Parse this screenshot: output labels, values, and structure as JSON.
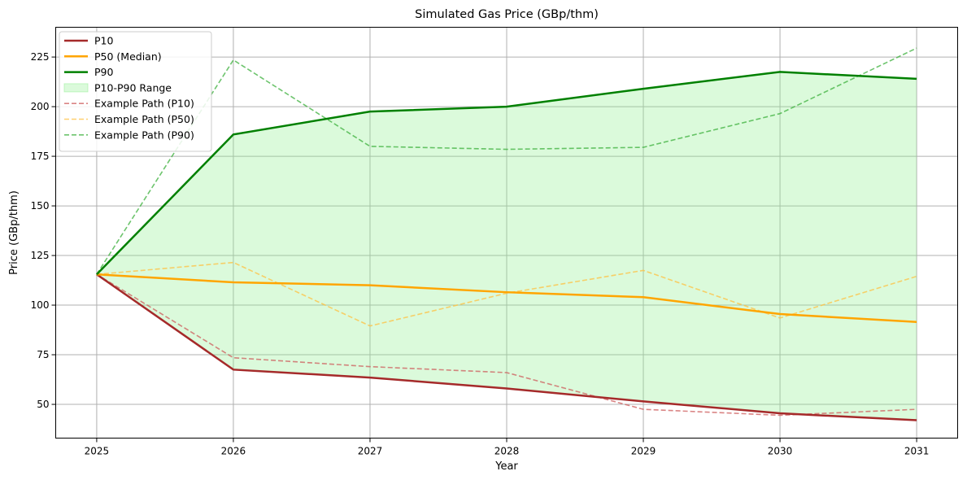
{
  "chart_data": {
    "type": "line",
    "title": "Simulated Gas Price (GBp/thm)",
    "xlabel": "Year",
    "ylabel": "Price (GBp/thm)",
    "x": [
      2025,
      2026,
      2027,
      2028,
      2029,
      2030,
      2031
    ],
    "x_ticks": [
      "2025",
      "2026",
      "2027",
      "2028",
      "2029",
      "2030",
      "2031"
    ],
    "y_ticks": [
      "50",
      "75",
      "100",
      "125",
      "150",
      "175",
      "200",
      "225"
    ],
    "xlim": [
      2024.7,
      2031.3
    ],
    "ylim": [
      33,
      240
    ],
    "grid": true,
    "legend_position": "upper-left",
    "band": {
      "name": "P10-P90 Range",
      "color": "#90ee90",
      "lower": [
        115.5,
        67.5,
        63.5,
        58.0,
        51.5,
        45.5,
        42.0
      ],
      "upper": [
        115.5,
        186.0,
        197.5,
        200.0,
        209.0,
        217.5,
        214.0
      ]
    },
    "series": [
      {
        "name": "P10",
        "style": "solid",
        "color": "#a52a2a",
        "values": [
          115.5,
          67.5,
          63.5,
          58.0,
          51.5,
          45.5,
          42.0
        ]
      },
      {
        "name": "P50 (Median)",
        "style": "solid",
        "color": "#ffa500",
        "values": [
          115.5,
          111.5,
          110.0,
          106.5,
          104.0,
          95.5,
          91.5
        ]
      },
      {
        "name": "P90",
        "style": "solid",
        "color": "#008000",
        "values": [
          115.5,
          186.0,
          197.5,
          200.0,
          209.0,
          217.5,
          214.0
        ]
      },
      {
        "name": "Example Path (P10)",
        "style": "dashed",
        "color": "#cd5c5c",
        "values": [
          115.5,
          73.5,
          69.0,
          66.0,
          47.5,
          44.5,
          47.5
        ]
      },
      {
        "name": "Example Path (P50)",
        "style": "dashed",
        "color": "#ffc040",
        "values": [
          115.5,
          121.5,
          89.5,
          106.0,
          117.5,
          93.5,
          114.5
        ]
      },
      {
        "name": "Example Path (P90)",
        "style": "dashed",
        "color": "#3cb03c",
        "values": [
          115.5,
          223.5,
          180.0,
          178.5,
          179.5,
          196.5,
          229.5
        ]
      }
    ],
    "legend_order": [
      "P10",
      "P50 (Median)",
      "P90",
      "P10-P90 Range",
      "Example Path (P10)",
      "Example Path (P50)",
      "Example Path (P90)"
    ]
  }
}
